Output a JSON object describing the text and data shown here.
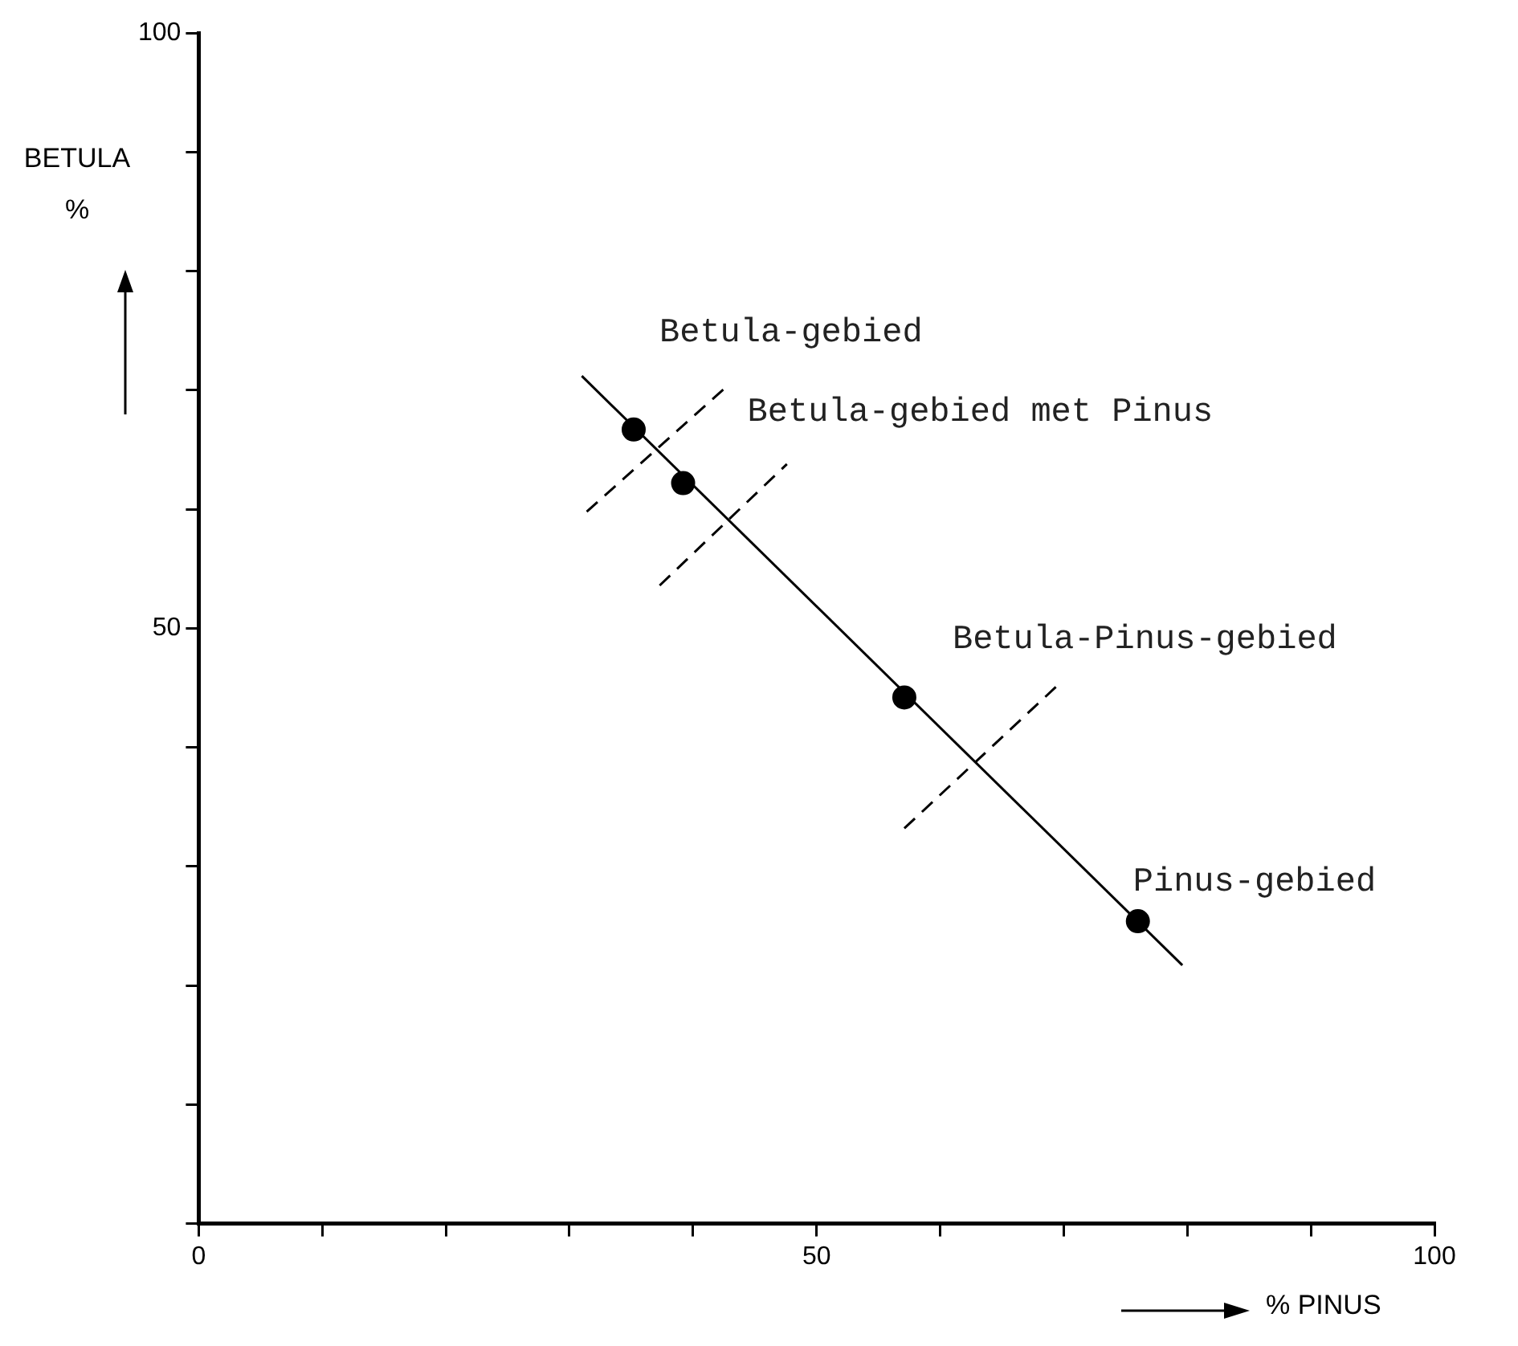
{
  "chart_data": {
    "type": "scatter",
    "xlabel": "% PINUS",
    "ylabel": "BETULA %",
    "xlim": [
      0,
      100
    ],
    "ylim": [
      0,
      100
    ],
    "xticks": [
      0,
      {
        "value": 10,
        "label": null
      },
      {
        "value": 20,
        "label": null
      },
      {
        "value": 30,
        "label": null
      },
      {
        "value": 40,
        "label": null
      },
      50,
      {
        "value": 60,
        "label": null
      },
      {
        "value": 70,
        "label": null
      },
      {
        "value": 80,
        "label": null
      },
      {
        "value": 90,
        "label": null
      },
      100
    ],
    "yticks": [
      {
        "value": 0,
        "label": null
      },
      {
        "value": 10,
        "label": null
      },
      {
        "value": 20,
        "label": null
      },
      {
        "value": 30,
        "label": null
      },
      {
        "value": 40,
        "label": null
      },
      50,
      {
        "value": 60,
        "label": null
      },
      {
        "value": 70,
        "label": null
      },
      {
        "value": 80,
        "label": null
      },
      {
        "value": 90,
        "label": null
      },
      100
    ],
    "grid": false,
    "legend": false,
    "marker": "circle",
    "series": [
      {
        "type": "scatter",
        "color": "#000000",
        "x": [
          35.2,
          39.2,
          57.1,
          76.0
        ],
        "values": [
          66.7,
          62.2,
          44.2,
          25.4
        ]
      },
      {
        "type": "line",
        "color": "#000000",
        "marker": "none",
        "line_style": "solid",
        "x": [
          31.0,
          79.6
        ],
        "values": [
          71.2,
          21.7
        ]
      },
      {
        "type": "line",
        "color": "#000000",
        "marker": "none",
        "line_style": "dashed",
        "x": [
          31.4,
          42.6
        ],
        "values": [
          59.8,
          70.2
        ]
      },
      {
        "type": "line",
        "color": "#000000",
        "marker": "none",
        "line_style": "dashed",
        "x": [
          37.3,
          47.6
        ],
        "values": [
          53.6,
          63.8
        ]
      },
      {
        "type": "line",
        "color": "#000000",
        "marker": "none",
        "line_style": "dashed",
        "x": [
          57.1,
          69.7
        ],
        "values": [
          33.2,
          45.4
        ]
      }
    ],
    "annotations": [
      {
        "text": "Betula-gebied",
        "x": 35.2,
        "y": 66.7
      },
      {
        "text": "Betula-gebied met Pinus",
        "x": 39.2,
        "y": 62.2
      },
      {
        "text": "Betula-Pinus-gebied",
        "x": 57.1,
        "y": 44.2
      },
      {
        "text": "Pinus-gebied",
        "x": 76.0,
        "y": 25.4
      }
    ]
  }
}
